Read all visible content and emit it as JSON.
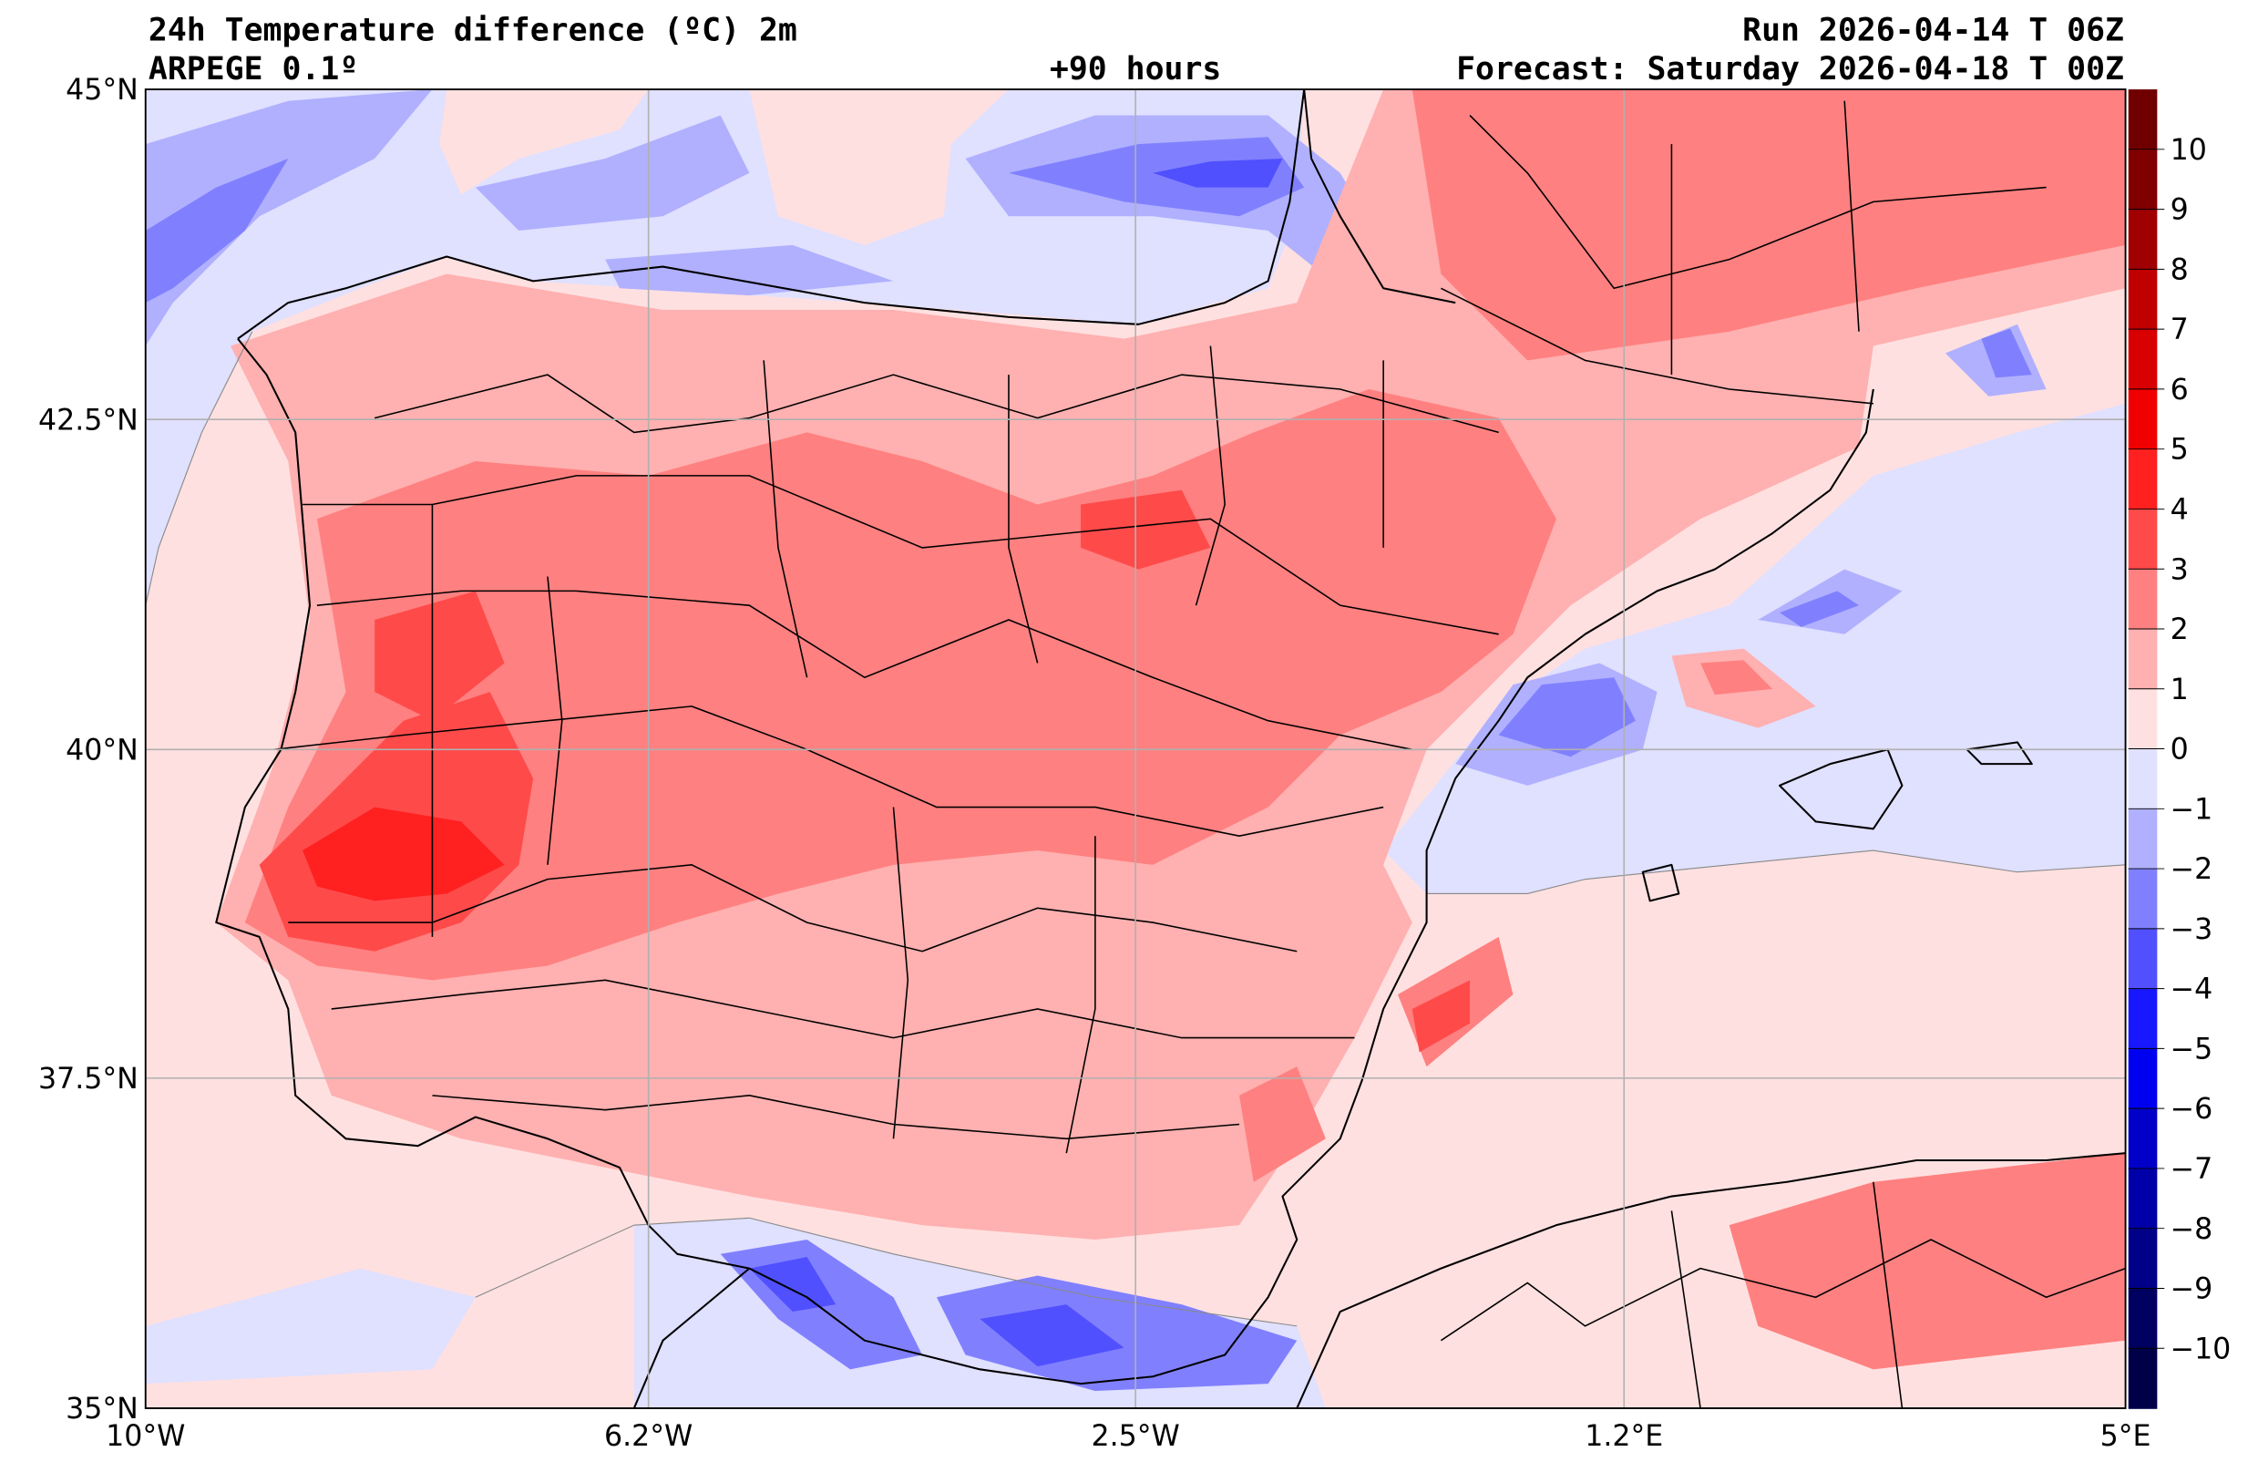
{
  "header": {
    "title": "24h Temperature difference (ºC) 2m",
    "model": "ARPEGE 0.1º",
    "lead_time": "+90 hours",
    "run": "Run 2026-04-14 T 06Z",
    "forecast": "Forecast: Saturday 2026-04-18 T 00Z"
  },
  "map": {
    "lon_labels": [
      "10°W",
      "6.2°W",
      "2.5°W",
      "1.2°E",
      "5°E"
    ],
    "lat_labels": [
      "45°N",
      "42.5°N",
      "40°N",
      "37.5°N",
      "35°N"
    ]
  },
  "colorbar": {
    "unit": "ºC",
    "labels": [
      "10",
      "9",
      "8",
      "7",
      "6",
      "5",
      "4",
      "3",
      "2",
      "1",
      "0",
      "−1",
      "−2",
      "−3",
      "−4",
      "−5",
      "−6",
      "−7",
      "−8",
      "−9",
      "−10"
    ],
    "colors": [
      "#700000",
      "#800000",
      "#a00000",
      "#c00000",
      "#d80000",
      "#f00000",
      "#ff2020",
      "#ff4a4a",
      "#ff8080",
      "#ffb0b0",
      "#ffe0e0",
      "#e0e0ff",
      "#b0b0ff",
      "#8080ff",
      "#5050ff",
      "#1818ff",
      "#0000f0",
      "#0000c8",
      "#0000a8",
      "#000088",
      "#000060",
      "#000048"
    ]
  }
}
